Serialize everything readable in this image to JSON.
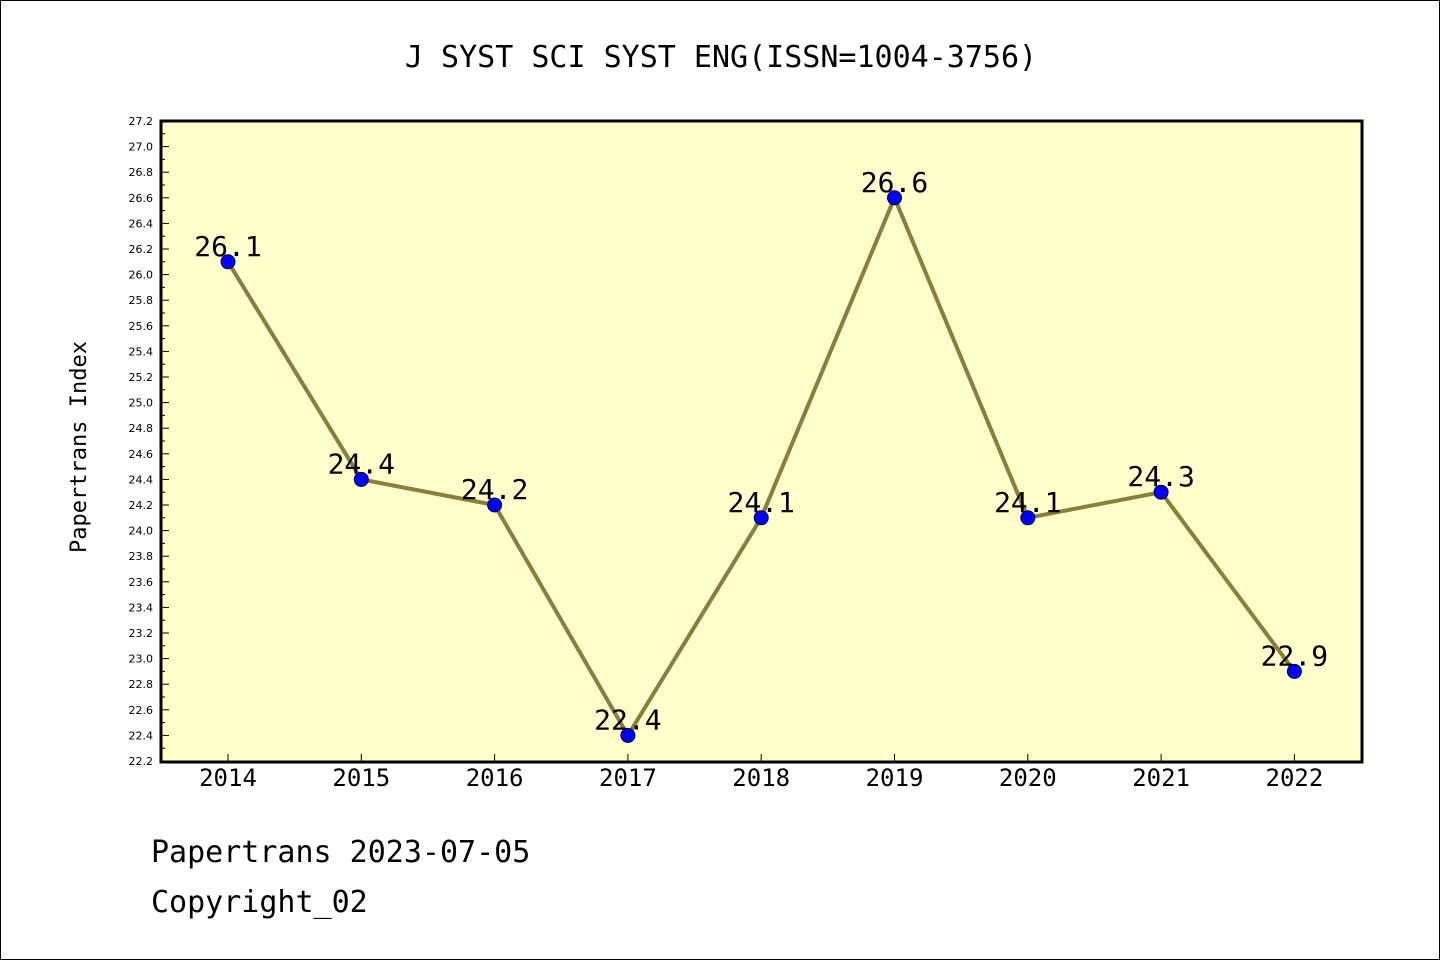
{
  "chart_data": {
    "type": "line",
    "title": "J SYST SCI SYST ENG(ISSN=1004-3756)",
    "xlabel": "",
    "ylabel": "Papertrans Index",
    "categories": [
      "2014",
      "2015",
      "2016",
      "2017",
      "2018",
      "2019",
      "2020",
      "2021",
      "2022"
    ],
    "series": [
      {
        "values": [
          26.1,
          24.4,
          24.2,
          22.4,
          24.1,
          26.6,
          24.1,
          24.3,
          22.9
        ],
        "labels": [
          "26.1",
          "24.4",
          "24.2",
          "22.4",
          "24.1",
          "26.6",
          "24.1",
          "24.3",
          "22.9"
        ]
      }
    ],
    "ylim": [
      22.2,
      27.2
    ],
    "yticks": [
      "22.2",
      "22.4",
      "22.6",
      "22.8",
      "23.0",
      "23.2",
      "23.4",
      "23.6",
      "23.8",
      "24.0",
      "24.2",
      "24.4",
      "24.6",
      "24.8",
      "25.0",
      "25.2",
      "25.4",
      "25.6",
      "25.8",
      "26.0",
      "26.2",
      "26.4",
      "26.6",
      "26.8",
      "27.0",
      "27.2"
    ],
    "grid": false,
    "colors": {
      "plot_background": "#ffffcc",
      "line": "#8b7d3a",
      "marker": "#0000ff"
    }
  },
  "footer": {
    "date_line": "Papertrans 2023-07-05",
    "copyright_line": "Copyright_02"
  }
}
